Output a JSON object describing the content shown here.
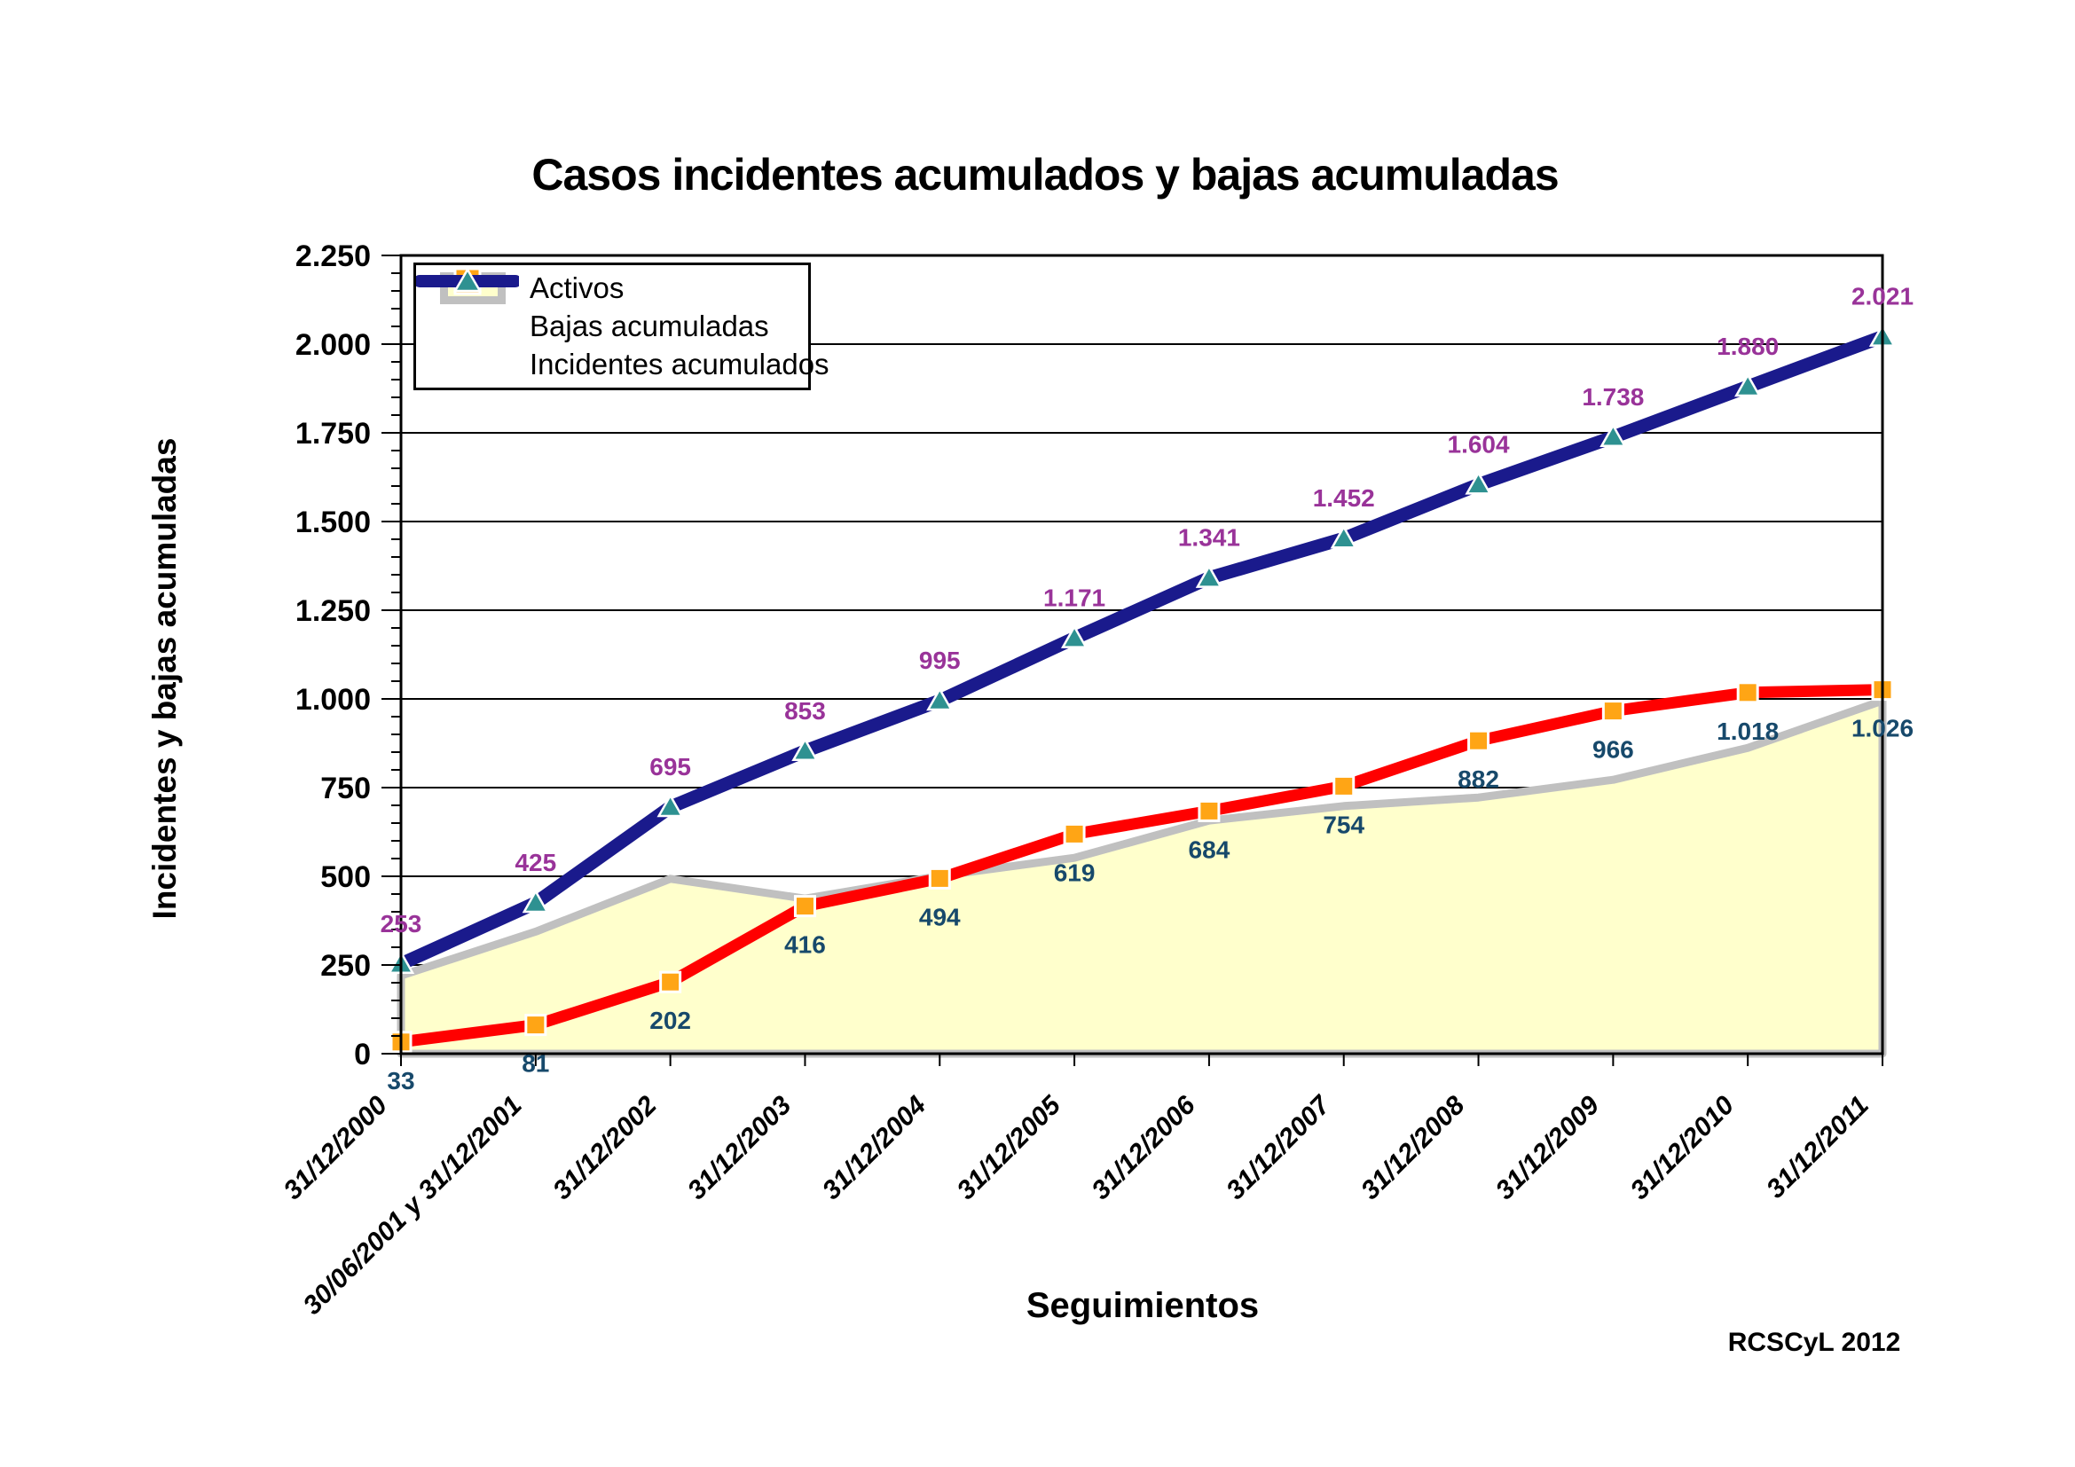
{
  "chart_data": {
    "type": "line",
    "title": "Casos incidentes acumulados y bajas acumuladas",
    "xlabel": "Seguimientos",
    "ylabel": "Incidentes y bajas acumuladas",
    "credit": "RCSCyL 2012",
    "ylim": [
      0,
      2250
    ],
    "ytick_major_step": 250,
    "ytick_minor_step": 50,
    "grid": "horizontal major gridlines on",
    "legend_position": "top-left inside plot area",
    "categories": [
      "31/12/2000",
      "30/06/2001 y 31/12/2001",
      "31/12/2002",
      "31/12/2003",
      "31/12/2004",
      "31/12/2005",
      "31/12/2006",
      "31/12/2007",
      "31/12/2008",
      "31/12/2009",
      "31/12/2010",
      "31/12/2011"
    ],
    "yaxis_ticks": [
      {
        "v": 2250,
        "label": "2.250"
      },
      {
        "v": 2000,
        "label": "2.000"
      },
      {
        "v": 1750,
        "label": "1.750"
      },
      {
        "v": 1500,
        "label": "1.500"
      },
      {
        "v": 1250,
        "label": "1.250"
      },
      {
        "v": 1000,
        "label": "1.000"
      },
      {
        "v": 750,
        "label": "750"
      },
      {
        "v": 500,
        "label": "500"
      },
      {
        "v": 250,
        "label": "250"
      },
      {
        "v": 0,
        "label": "0"
      }
    ],
    "series": [
      {
        "name": "Activos",
        "type": "area",
        "fill": "#FFFFCC",
        "border_color": "#C0C0C0",
        "values": [
          220,
          344,
          493,
          437,
          501,
          552,
          657,
          698,
          722,
          772,
          862,
          995
        ]
      },
      {
        "name": "Bajas acumuladas",
        "type": "line",
        "color": "#FF0000",
        "marker": "square",
        "marker_color": "#FFA515",
        "label_color": "#17496B",
        "values": [
          33,
          81,
          202,
          416,
          494,
          619,
          684,
          754,
          882,
          966,
          1018,
          1026
        ],
        "labels": [
          "33",
          "81",
          "202",
          "416",
          "494",
          "619",
          "684",
          "754",
          "882",
          "966",
          "1.018",
          "1.026"
        ]
      },
      {
        "name": "Incidentes acumulados",
        "type": "line",
        "color": "#1A1A8C",
        "marker": "triangle",
        "marker_color": "#2E9191",
        "label_color": "#993399",
        "values": [
          253,
          425,
          695,
          853,
          995,
          1171,
          1341,
          1452,
          1604,
          1738,
          1880,
          2021
        ],
        "labels": [
          "253",
          "425",
          "695",
          "853",
          "995",
          "1.171",
          "1.341",
          "1.452",
          "1.604",
          "1.738",
          "1.880",
          "2.021"
        ]
      }
    ],
    "colors": {
      "gridline": "#000000",
      "frame": "#000000",
      "incidentes_line": "#1A1A8C",
      "incidentes_marker": "#2E9191",
      "incidentes_label": "#993399",
      "bajas_line": "#FF0000",
      "bajas_marker": "#FFA515",
      "bajas_label": "#17496B",
      "activos_fill": "#FFFFCC",
      "activos_border": "#C0C0C0"
    }
  },
  "legend": {
    "items": [
      {
        "label": "Activos"
      },
      {
        "label": "Bajas acumuladas"
      },
      {
        "label": "Incidentes acumulados"
      }
    ]
  }
}
